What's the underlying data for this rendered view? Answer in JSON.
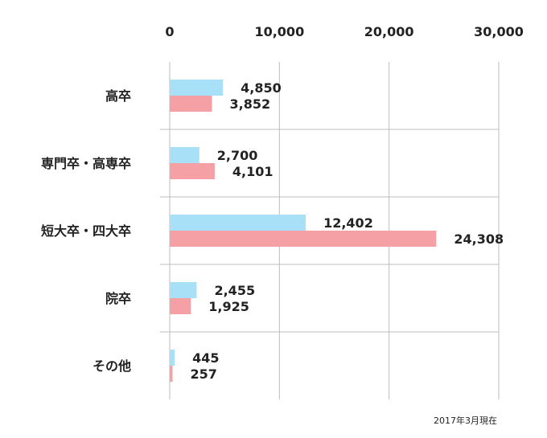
{
  "chart_data": {
    "type": "bar",
    "orientation": "horizontal",
    "categories": [
      "高卒",
      "専門卒・高専卒",
      "短大卒・四大卒",
      "院卒",
      "その他"
    ],
    "series": [
      {
        "color": "#a8e0f8",
        "values": [
          4850,
          2700,
          12402,
          2455,
          445
        ]
      },
      {
        "color": "#f4a0a4",
        "values": [
          3852,
          4101,
          24308,
          1925,
          257
        ]
      }
    ],
    "value_labels": [
      [
        "4,850",
        "2,700",
        "12,402",
        "2,455",
        "445"
      ],
      [
        "3,852",
        "4,101",
        "24,308",
        "1,925",
        "257"
      ]
    ],
    "x_ticks": [
      "0",
      "10,000",
      "20,000",
      "30,000"
    ],
    "xlim": [
      0,
      30000
    ],
    "x_axis_position": "top",
    "grid": true,
    "legend": "none"
  },
  "note": "2017年3月現在"
}
